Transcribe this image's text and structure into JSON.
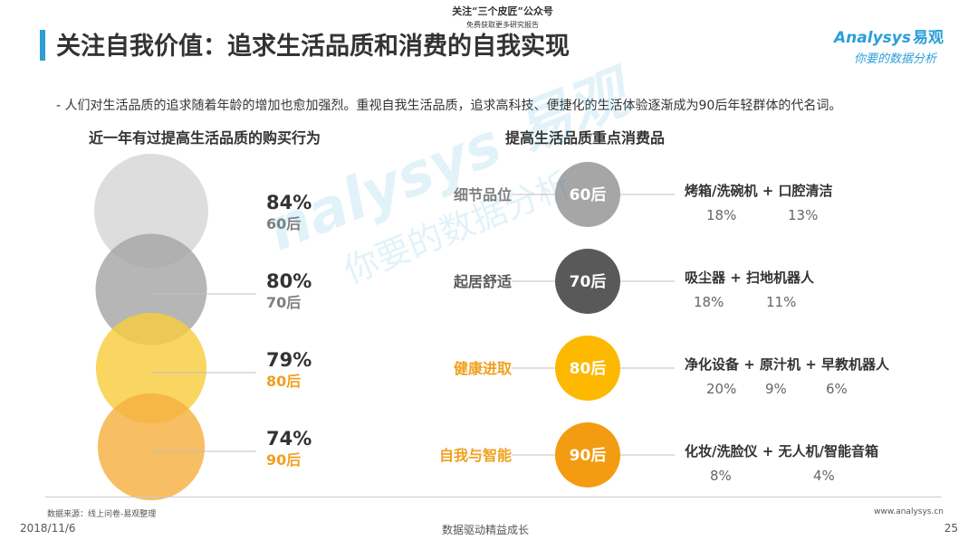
{
  "header": {
    "title": "关注自我价值：追求生活品质和消费的自我实现",
    "promo_line1": "关注“三个皮匠”公众号",
    "promo_line2": "免费获取更多研究报告"
  },
  "logo": {
    "brand": "nalysys",
    "brand_prefix": "A",
    "brand_cn": "易观",
    "tagline": "你要的数据分析"
  },
  "description": "- 人们对生活品质的追求随着年龄的增加也愈加强烈。重视自我生活品质，追求高科技、便捷化的生活体验逐渐成为90后年轻群体的代名词。",
  "colors": {
    "accent": "#2a9ed8",
    "gen60": "#d6d6d6",
    "gen70": "#a6a6a6",
    "gen80": "#f7cd3e",
    "gen90": "#f5b041",
    "right60": "#a6a6a6",
    "right70": "#595959",
    "right80": "#fcb900",
    "right90": "#f39c12",
    "label_gray": "#7f7f7f",
    "label_orange": "#f0a020"
  },
  "chart_data": [
    {
      "type": "bubble",
      "title": "近一年有过提高生活品质的购买行为",
      "unit": "%",
      "points": [
        {
          "generation": "60后",
          "value": 84
        },
        {
          "generation": "70后",
          "value": 80
        },
        {
          "generation": "80后",
          "value": 79
        },
        {
          "generation": "90后",
          "value": 74
        }
      ]
    },
    {
      "type": "table",
      "title": "提高生活品质重点消费品",
      "rows": [
        {
          "category": "细节品位",
          "generation": "60后",
          "items": [
            {
              "name": "烤箱/洗碗机",
              "value": "18%"
            },
            {
              "name": "口腔清洁",
              "value": "13%"
            }
          ]
        },
        {
          "category": "起居舒适",
          "generation": "70后",
          "items": [
            {
              "name": "吸尘器",
              "value": "18%"
            },
            {
              "name": "扫地机器人",
              "value": "11%"
            }
          ]
        },
        {
          "category": "健康进取",
          "generation": "80后",
          "items": [
            {
              "name": "净化设备",
              "value": "20%"
            },
            {
              "name": "原汁机",
              "value": "9%"
            },
            {
              "name": "早教机器人",
              "value": "6%"
            }
          ]
        },
        {
          "category": "自我与智能",
          "generation": "90后",
          "items": [
            {
              "name": "化妆/洗脸仪",
              "value": "8%"
            },
            {
              "name": "无人机/智能音箱",
              "value": "4%"
            }
          ]
        }
      ]
    }
  ],
  "watermark": {
    "brand": "nalysys 易观",
    "tagline": "你要的数据分析"
  },
  "footer": {
    "source": "数据来源：线上问卷-易观整理",
    "website": "www.analysys.cn",
    "date": "2018/11/6",
    "slogan": "数据驱动精益成长",
    "page_number": "25"
  }
}
